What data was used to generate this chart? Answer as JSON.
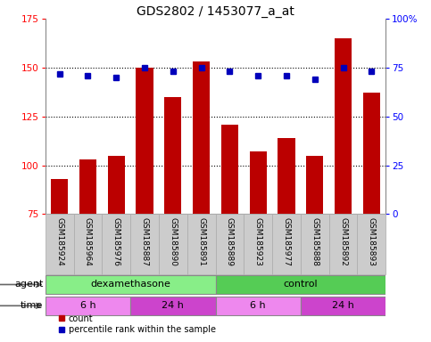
{
  "title": "GDS2802 / 1453077_a_at",
  "samples": [
    "GSM185924",
    "GSM185964",
    "GSM185976",
    "GSM185887",
    "GSM185890",
    "GSM185891",
    "GSM185889",
    "GSM185923",
    "GSM185977",
    "GSM185888",
    "GSM185892",
    "GSM185893"
  ],
  "counts": [
    93,
    103,
    105,
    150,
    135,
    153,
    121,
    107,
    114,
    105,
    165,
    137
  ],
  "percentile_ranks": [
    72,
    71,
    70,
    75,
    73,
    75,
    73,
    71,
    71,
    69,
    75,
    73
  ],
  "ylim_left": [
    75,
    175
  ],
  "ylim_right": [
    0,
    100
  ],
  "yticks_left": [
    75,
    100,
    125,
    150,
    175
  ],
  "yticks_right": [
    0,
    25,
    50,
    75,
    100
  ],
  "bar_color": "#bb0000",
  "dot_color": "#0000bb",
  "agent_groups": [
    {
      "label": "dexamethasone",
      "start": 0,
      "end": 6,
      "color": "#88ee88"
    },
    {
      "label": "control",
      "start": 6,
      "end": 12,
      "color": "#55cc55"
    }
  ],
  "time_groups": [
    {
      "label": "6 h",
      "start": 0,
      "end": 3,
      "color": "#ee88ee"
    },
    {
      "label": "24 h",
      "start": 3,
      "end": 6,
      "color": "#cc44cc"
    },
    {
      "label": "6 h",
      "start": 6,
      "end": 9,
      "color": "#ee88ee"
    },
    {
      "label": "24 h",
      "start": 9,
      "end": 12,
      "color": "#cc44cc"
    }
  ],
  "agent_label": "agent",
  "time_label": "time",
  "legend_count_label": "count",
  "legend_pct_label": "percentile rank within the sample",
  "plot_bg_color": "#ffffff",
  "sample_bg_color": "#cccccc",
  "title_fontsize": 10,
  "tick_fontsize": 7.5,
  "label_fontsize": 8,
  "sample_fontsize": 6.5
}
